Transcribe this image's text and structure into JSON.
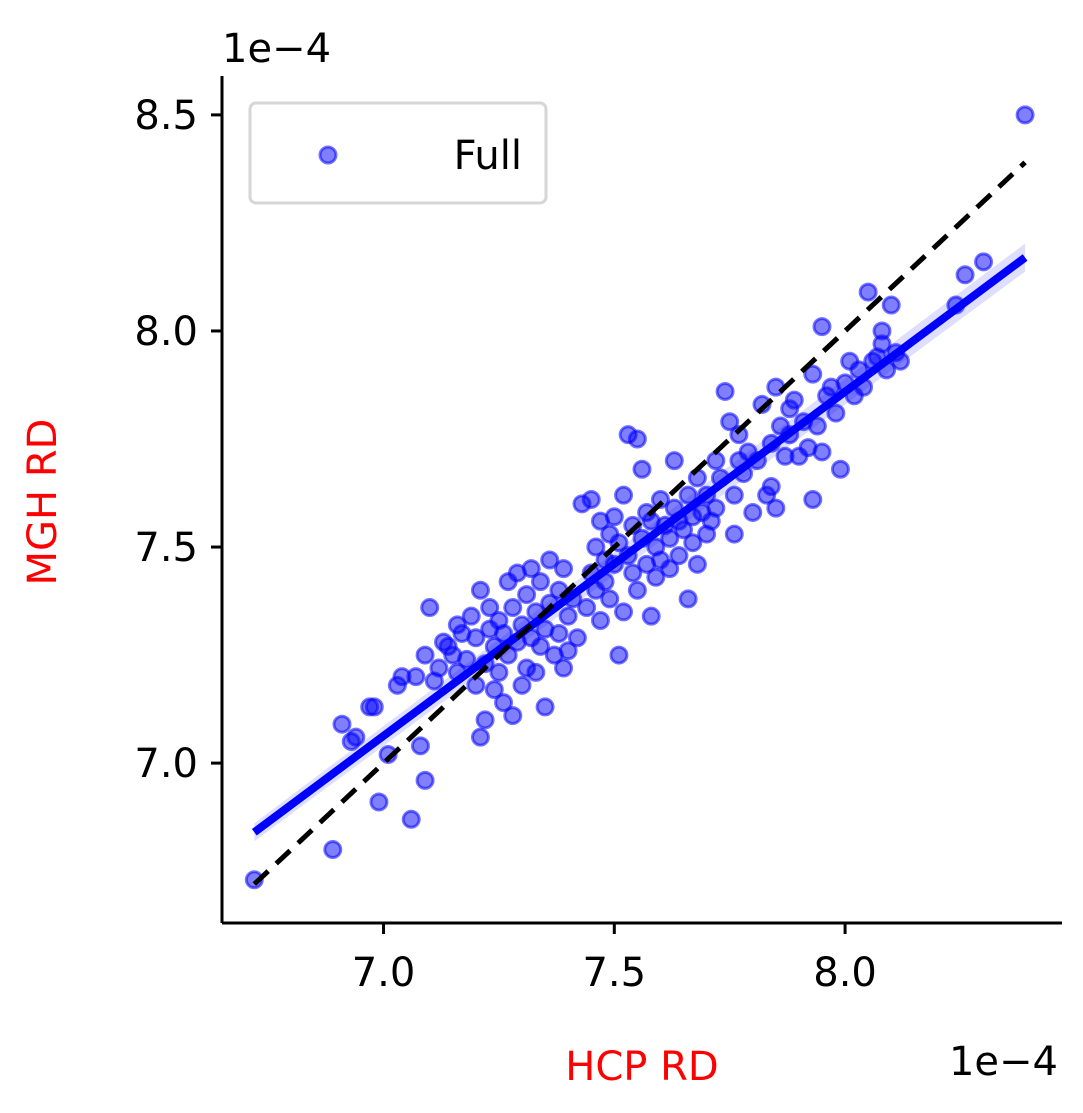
{
  "chart_data": {
    "type": "scatter",
    "xlabel": "HCP RD",
    "ylabel": "MGH RD",
    "label_color": "#ff0000",
    "x_offset_text": "1e−4",
    "y_offset_text": "1e−4",
    "xlim": [
      6.65,
      8.47
    ],
    "ylim": [
      6.63,
      8.59
    ],
    "x_ticks": [
      7.0,
      7.5,
      8.0
    ],
    "x_tick_labels": [
      "7.0",
      "7.5",
      "8.0"
    ],
    "y_ticks": [
      7.0,
      7.5,
      8.0,
      8.5
    ],
    "y_tick_labels": [
      "7.0",
      "7.5",
      "8.0",
      "8.5"
    ],
    "grid": false,
    "legend": {
      "position": "top-left",
      "entries": [
        "Full"
      ]
    },
    "series": [
      {
        "name": "Full",
        "kind": "points",
        "color": "#0000ff",
        "points": [
          [
            6.72,
            6.73
          ],
          [
            6.89,
            6.8
          ],
          [
            6.91,
            7.09
          ],
          [
            6.93,
            7.05
          ],
          [
            6.94,
            7.06
          ],
          [
            6.97,
            7.13
          ],
          [
            6.98,
            7.13
          ],
          [
            6.99,
            6.91
          ],
          [
            7.01,
            7.02
          ],
          [
            7.03,
            7.18
          ],
          [
            7.04,
            7.2
          ],
          [
            7.06,
            6.87
          ],
          [
            7.07,
            7.2
          ],
          [
            7.08,
            7.04
          ],
          [
            7.09,
            7.25
          ],
          [
            7.09,
            6.96
          ],
          [
            7.1,
            7.36
          ],
          [
            7.11,
            7.19
          ],
          [
            7.12,
            7.22
          ],
          [
            7.13,
            7.28
          ],
          [
            7.14,
            7.27
          ],
          [
            7.15,
            7.25
          ],
          [
            7.16,
            7.32
          ],
          [
            7.16,
            7.21
          ],
          [
            7.17,
            7.3
          ],
          [
            7.18,
            7.24
          ],
          [
            7.19,
            7.34
          ],
          [
            7.2,
            7.29
          ],
          [
            7.2,
            7.18
          ],
          [
            7.21,
            7.06
          ],
          [
            7.21,
            7.4
          ],
          [
            7.22,
            7.23
          ],
          [
            7.22,
            7.1
          ],
          [
            7.23,
            7.31
          ],
          [
            7.23,
            7.36
          ],
          [
            7.24,
            7.27
          ],
          [
            7.24,
            7.17
          ],
          [
            7.25,
            7.33
          ],
          [
            7.25,
            7.21
          ],
          [
            7.26,
            7.3
          ],
          [
            7.26,
            7.14
          ],
          [
            7.27,
            7.42
          ],
          [
            7.27,
            7.25
          ],
          [
            7.28,
            7.36
          ],
          [
            7.28,
            7.11
          ],
          [
            7.29,
            7.44
          ],
          [
            7.29,
            7.28
          ],
          [
            7.3,
            7.32
          ],
          [
            7.3,
            7.18
          ],
          [
            7.31,
            7.39
          ],
          [
            7.31,
            7.22
          ],
          [
            7.32,
            7.45
          ],
          [
            7.32,
            7.29
          ],
          [
            7.33,
            7.35
          ],
          [
            7.33,
            7.21
          ],
          [
            7.34,
            7.27
          ],
          [
            7.34,
            7.42
          ],
          [
            7.35,
            7.31
          ],
          [
            7.35,
            7.13
          ],
          [
            7.36,
            7.37
          ],
          [
            7.36,
            7.47
          ],
          [
            7.37,
            7.25
          ],
          [
            7.38,
            7.4
          ],
          [
            7.38,
            7.3
          ],
          [
            7.39,
            7.45
          ],
          [
            7.39,
            7.22
          ],
          [
            7.4,
            7.34
          ],
          [
            7.4,
            7.26
          ],
          [
            7.41,
            7.38
          ],
          [
            7.42,
            7.29
          ],
          [
            7.43,
            7.6
          ],
          [
            7.44,
            7.36
          ],
          [
            7.45,
            7.44
          ],
          [
            7.45,
            7.61
          ],
          [
            7.46,
            7.5
          ],
          [
            7.46,
            7.4
          ],
          [
            7.47,
            7.56
          ],
          [
            7.47,
            7.33
          ],
          [
            7.48,
            7.47
          ],
          [
            7.48,
            7.42
          ],
          [
            7.49,
            7.53
          ],
          [
            7.49,
            7.38
          ],
          [
            7.5,
            7.57
          ],
          [
            7.5,
            7.46
          ],
          [
            7.51,
            7.25
          ],
          [
            7.51,
            7.51
          ],
          [
            7.52,
            7.35
          ],
          [
            7.52,
            7.62
          ],
          [
            7.53,
            7.48
          ],
          [
            7.53,
            7.76
          ],
          [
            7.54,
            7.44
          ],
          [
            7.54,
            7.55
          ],
          [
            7.55,
            7.75
          ],
          [
            7.55,
            7.4
          ],
          [
            7.56,
            7.52
          ],
          [
            7.56,
            7.68
          ],
          [
            7.57,
            7.46
          ],
          [
            7.57,
            7.58
          ],
          [
            7.58,
            7.34
          ],
          [
            7.58,
            7.56
          ],
          [
            7.59,
            7.5
          ],
          [
            7.59,
            7.43
          ],
          [
            7.6,
            7.61
          ],
          [
            7.6,
            7.47
          ],
          [
            7.61,
            7.55
          ],
          [
            7.62,
            7.52
          ],
          [
            7.62,
            7.45
          ],
          [
            7.63,
            7.59
          ],
          [
            7.63,
            7.7
          ],
          [
            7.64,
            7.48
          ],
          [
            7.64,
            7.56
          ],
          [
            7.65,
            7.54
          ],
          [
            7.66,
            7.38
          ],
          [
            7.66,
            7.62
          ],
          [
            7.67,
            7.51
          ],
          [
            7.67,
            7.57
          ],
          [
            7.68,
            7.66
          ],
          [
            7.68,
            7.46
          ],
          [
            7.69,
            7.58
          ],
          [
            7.7,
            7.53
          ],
          [
            7.7,
            7.62
          ],
          [
            7.71,
            7.56
          ],
          [
            7.72,
            7.59
          ],
          [
            7.72,
            7.7
          ],
          [
            7.73,
            7.66
          ],
          [
            7.74,
            7.86
          ],
          [
            7.75,
            7.79
          ],
          [
            7.76,
            7.53
          ],
          [
            7.76,
            7.62
          ],
          [
            7.77,
            7.7
          ],
          [
            7.77,
            7.76
          ],
          [
            7.78,
            7.67
          ],
          [
            7.79,
            7.72
          ],
          [
            7.8,
            7.58
          ],
          [
            7.81,
            7.7
          ],
          [
            7.82,
            7.83
          ],
          [
            7.83,
            7.62
          ],
          [
            7.84,
            7.74
          ],
          [
            7.84,
            7.64
          ],
          [
            7.85,
            7.87
          ],
          [
            7.85,
            7.59
          ],
          [
            7.86,
            7.78
          ],
          [
            7.87,
            7.71
          ],
          [
            7.88,
            7.82
          ],
          [
            7.88,
            7.76
          ],
          [
            7.89,
            7.84
          ],
          [
            7.9,
            7.71
          ],
          [
            7.91,
            7.79
          ],
          [
            7.92,
            7.73
          ],
          [
            7.93,
            7.9
          ],
          [
            7.93,
            7.61
          ],
          [
            7.94,
            7.78
          ],
          [
            7.95,
            8.01
          ],
          [
            7.95,
            7.72
          ],
          [
            7.96,
            7.85
          ],
          [
            7.97,
            7.87
          ],
          [
            7.98,
            7.81
          ],
          [
            7.99,
            7.68
          ],
          [
            8.0,
            7.88
          ],
          [
            8.01,
            7.93
          ],
          [
            8.02,
            7.85
          ],
          [
            8.03,
            7.91
          ],
          [
            8.04,
            7.87
          ],
          [
            8.05,
            8.09
          ],
          [
            8.06,
            7.93
          ],
          [
            8.07,
            7.94
          ],
          [
            8.08,
            7.97
          ],
          [
            8.08,
            8.0
          ],
          [
            8.09,
            7.91
          ],
          [
            8.1,
            8.06
          ],
          [
            8.11,
            7.95
          ],
          [
            8.12,
            7.93
          ],
          [
            8.24,
            8.06
          ],
          [
            8.26,
            8.13
          ],
          [
            8.3,
            8.16
          ],
          [
            8.39,
            8.5
          ]
        ]
      },
      {
        "name": "",
        "kind": "regression",
        "color": "#0000ff",
        "band_color": "#d0d0ff",
        "x": [
          6.72,
          8.39
        ],
        "y": [
          6.84,
          8.17
        ]
      },
      {
        "name": "",
        "kind": "identity",
        "style": "dashed",
        "color": "#000000",
        "x": [
          6.72,
          8.39
        ],
        "y": [
          6.72,
          8.39
        ]
      }
    ]
  }
}
